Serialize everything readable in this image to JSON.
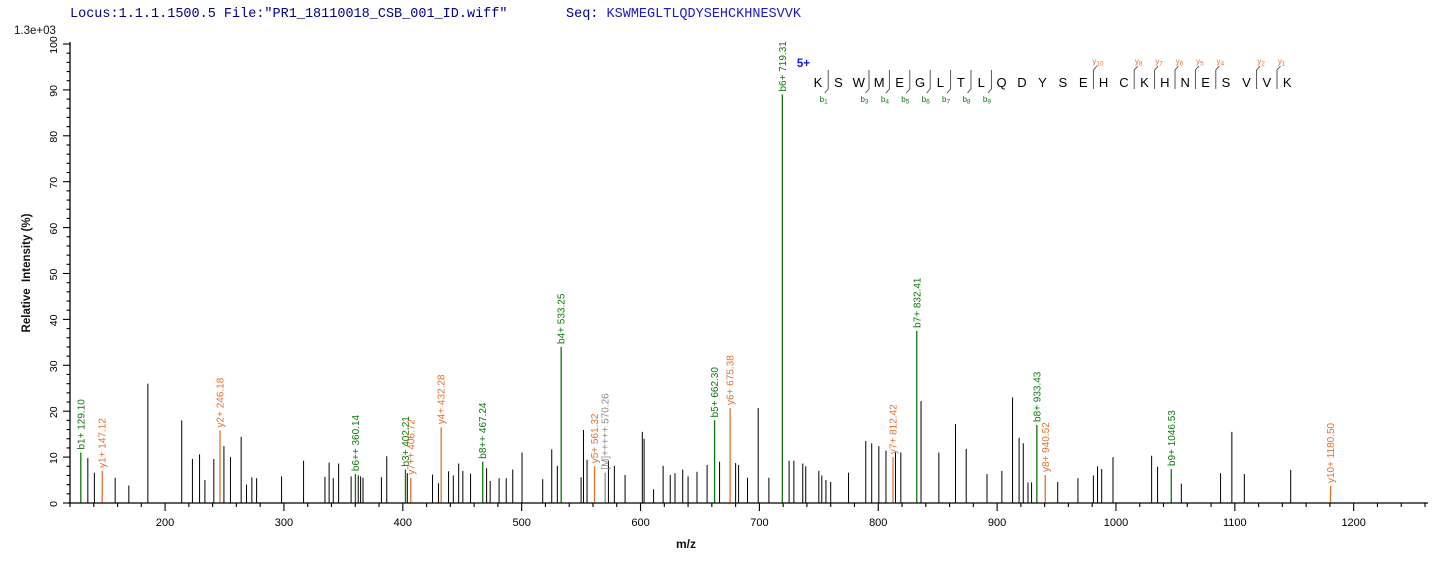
{
  "header": {
    "locus_file": "Locus:1.1.1.1500.5 File:\"PR1_18110018_CSB_001_ID.wiff\"",
    "seq_label": "Seq: ",
    "seq_value": "KSWMEGLTLQDYSEHCKHNESVVK"
  },
  "colors": {
    "b_ion": "#0b770b",
    "y_ion": "#e2712e",
    "precursor": "#8c8c8c",
    "peak": "#000000",
    "axis": "#000000",
    "header_text": "#00008b",
    "sequence_value_text": "#1a1acd",
    "charge_label_text": "#1515e6",
    "divider": "#444444"
  },
  "chart_data": {
    "type": "bar",
    "subtype": "ms2-fragment-stick-spectrum",
    "title": "",
    "xlabel": "m/z",
    "ylabel": "Relative  Intensity (%)",
    "y_scale_max_label": "1.3e+03",
    "xlim": [
      120,
      1260
    ],
    "ylim": [
      0,
      100
    ],
    "x_major_ticks": [
      200,
      300,
      400,
      500,
      600,
      700,
      800,
      900,
      1000,
      1100,
      1200
    ],
    "x_minor_step": 20,
    "y_major_ticks": [
      0,
      10,
      20,
      30,
      40,
      50,
      60,
      70,
      80,
      90,
      100
    ],
    "y_minor_step": 2,
    "grid": "off",
    "sequence_display": {
      "charge_label": "5+",
      "residues": "KSWMEGLTLQDYSEHCKHNESVVK",
      "b_markers": [
        {
          "ion": "b1",
          "boundary": 1
        },
        {
          "ion": "b3",
          "boundary": 3
        },
        {
          "ion": "b4",
          "boundary": 4
        },
        {
          "ion": "b5",
          "boundary": 5
        },
        {
          "ion": "b6",
          "boundary": 6
        },
        {
          "ion": "b7",
          "boundary": 7
        },
        {
          "ion": "b8",
          "boundary": 8
        },
        {
          "ion": "b9",
          "boundary": 9
        }
      ],
      "y_markers": [
        {
          "ion": "y10",
          "boundary": 14
        },
        {
          "ion": "y8",
          "boundary": 16
        },
        {
          "ion": "y7",
          "boundary": 17
        },
        {
          "ion": "y6",
          "boundary": 18
        },
        {
          "ion": "y5",
          "boundary": 19
        },
        {
          "ion": "y4",
          "boundary": 20
        },
        {
          "ion": "y2",
          "boundary": 22
        },
        {
          "ion": "y1",
          "boundary": 23
        }
      ]
    },
    "peaks": [
      {
        "mz": 129.1,
        "i": 11.0,
        "ion": "b",
        "label": "b1+ 129.10"
      },
      {
        "mz": 135.0,
        "i": 9.8
      },
      {
        "mz": 140.5,
        "i": 6.6
      },
      {
        "mz": 147.12,
        "i": 7.0,
        "ion": "y",
        "label": "y1+ 147.12"
      },
      {
        "mz": 158.0,
        "i": 5.5
      },
      {
        "mz": 169.5,
        "i": 3.8
      },
      {
        "mz": 185.5,
        "i": 26.0
      },
      {
        "mz": 214.0,
        "i": 18.0
      },
      {
        "mz": 223.0,
        "i": 9.6
      },
      {
        "mz": 229.0,
        "i": 10.6
      },
      {
        "mz": 233.5,
        "i": 5.0
      },
      {
        "mz": 241.0,
        "i": 9.6
      },
      {
        "mz": 246.18,
        "i": 15.8,
        "ion": "y",
        "label": "y2+ 246.18"
      },
      {
        "mz": 249.5,
        "i": 12.4
      },
      {
        "mz": 255.0,
        "i": 10.0
      },
      {
        "mz": 264.0,
        "i": 14.4
      },
      {
        "mz": 268.5,
        "i": 4.0
      },
      {
        "mz": 273.0,
        "i": 5.6
      },
      {
        "mz": 277.0,
        "i": 5.4
      },
      {
        "mz": 298.0,
        "i": 5.8
      },
      {
        "mz": 316.5,
        "i": 9.2
      },
      {
        "mz": 334.5,
        "i": 5.7
      },
      {
        "mz": 338.0,
        "i": 8.8
      },
      {
        "mz": 341.5,
        "i": 5.4
      },
      {
        "mz": 346.0,
        "i": 8.6
      },
      {
        "mz": 356.5,
        "i": 5.8
      },
      {
        "mz": 360.14,
        "i": 6.3,
        "ion": "b",
        "label": "b6++ 360.14"
      },
      {
        "mz": 362.5,
        "i": 6.0
      },
      {
        "mz": 364.5,
        "i": 5.8
      },
      {
        "mz": 366.5,
        "i": 5.5
      },
      {
        "mz": 382.0,
        "i": 5.6
      },
      {
        "mz": 386.5,
        "i": 10.2
      },
      {
        "mz": 402.21,
        "i": 7.3,
        "ion": "b",
        "label": "b3+ 402.21"
      },
      {
        "mz": 403.8,
        "i": 6.5
      },
      {
        "mz": 406.72,
        "i": 5.5,
        "ion": "y",
        "label": "y7++ 406.72"
      },
      {
        "mz": 425.0,
        "i": 6.2
      },
      {
        "mz": 430.0,
        "i": 4.3
      },
      {
        "mz": 432.28,
        "i": 16.5,
        "ion": "y",
        "label": "y4+ 432.28"
      },
      {
        "mz": 438.5,
        "i": 6.9
      },
      {
        "mz": 442.5,
        "i": 6.0
      },
      {
        "mz": 447.0,
        "i": 8.6
      },
      {
        "mz": 450.5,
        "i": 7.0
      },
      {
        "mz": 457.0,
        "i": 6.4
      },
      {
        "mz": 467.24,
        "i": 9.0,
        "ion": "b",
        "label": "b8++ 467.24"
      },
      {
        "mz": 470.5,
        "i": 7.6
      },
      {
        "mz": 473.5,
        "i": 4.8
      },
      {
        "mz": 481.0,
        "i": 5.4
      },
      {
        "mz": 487.0,
        "i": 5.4
      },
      {
        "mz": 492.5,
        "i": 7.3
      },
      {
        "mz": 500.3,
        "i": 11.0
      },
      {
        "mz": 517.7,
        "i": 5.2
      },
      {
        "mz": 525.3,
        "i": 11.7
      },
      {
        "mz": 530.0,
        "i": 8.1
      },
      {
        "mz": 533.25,
        "i": 34.0,
        "ion": "b",
        "label": "b4+ 533.25"
      },
      {
        "mz": 550.0,
        "i": 5.6
      },
      {
        "mz": 552.0,
        "i": 15.9
      },
      {
        "mz": 555.0,
        "i": 9.4
      },
      {
        "mz": 561.32,
        "i": 8.0,
        "ion": "y",
        "label": "y5+ 561.32"
      },
      {
        "mz": 570.26,
        "i": 6.6,
        "ion": "M",
        "label": "[M]+++++ 570.26"
      },
      {
        "mz": 573.0,
        "i": 9.2
      },
      {
        "mz": 578.0,
        "i": 8.1
      },
      {
        "mz": 587.0,
        "i": 6.1
      },
      {
        "mz": 601.5,
        "i": 15.5
      },
      {
        "mz": 603.0,
        "i": 14.0
      },
      {
        "mz": 611.0,
        "i": 3.0
      },
      {
        "mz": 619.0,
        "i": 8.1
      },
      {
        "mz": 625.0,
        "i": 6.1
      },
      {
        "mz": 629.0,
        "i": 6.5
      },
      {
        "mz": 635.5,
        "i": 7.3
      },
      {
        "mz": 640.0,
        "i": 5.8
      },
      {
        "mz": 647.5,
        "i": 6.8
      },
      {
        "mz": 656.0,
        "i": 8.3
      },
      {
        "mz": 662.3,
        "i": 18.0,
        "ion": "b",
        "label": "b5+ 662.30"
      },
      {
        "mz": 666.5,
        "i": 9.0
      },
      {
        "mz": 675.38,
        "i": 20.7,
        "ion": "y",
        "label": "y6+ 675.38"
      },
      {
        "mz": 680.0,
        "i": 8.7
      },
      {
        "mz": 682.5,
        "i": 8.3
      },
      {
        "mz": 690.0,
        "i": 5.5
      },
      {
        "mz": 699.0,
        "i": 20.7
      },
      {
        "mz": 708.0,
        "i": 5.5
      },
      {
        "mz": 719.31,
        "i": 89.0,
        "ion": "b",
        "label": "b6+ 719.31"
      },
      {
        "mz": 725.0,
        "i": 9.2
      },
      {
        "mz": 729.0,
        "i": 9.2
      },
      {
        "mz": 736.5,
        "i": 8.6
      },
      {
        "mz": 739.0,
        "i": 8.0
      },
      {
        "mz": 750.0,
        "i": 7.0
      },
      {
        "mz": 752.5,
        "i": 6.0
      },
      {
        "mz": 756.0,
        "i": 5.0
      },
      {
        "mz": 760.0,
        "i": 4.6
      },
      {
        "mz": 775.0,
        "i": 6.6
      },
      {
        "mz": 789.5,
        "i": 13.5
      },
      {
        "mz": 794.5,
        "i": 13.0
      },
      {
        "mz": 800.5,
        "i": 12.4
      },
      {
        "mz": 806.5,
        "i": 11.4
      },
      {
        "mz": 812.42,
        "i": 10.0,
        "ion": "y",
        "label": "y7+ 812.42"
      },
      {
        "mz": 814.5,
        "i": 11.0
      },
      {
        "mz": 819.0,
        "i": 11.0
      },
      {
        "mz": 832.41,
        "i": 37.5,
        "ion": "b",
        "label": "b7+ 832.41"
      },
      {
        "mz": 836.0,
        "i": 22.2
      },
      {
        "mz": 851.0,
        "i": 11.0
      },
      {
        "mz": 865.0,
        "i": 17.2
      },
      {
        "mz": 874.0,
        "i": 11.8
      },
      {
        "mz": 891.5,
        "i": 6.3
      },
      {
        "mz": 904.0,
        "i": 7.0
      },
      {
        "mz": 913.0,
        "i": 23.0
      },
      {
        "mz": 918.5,
        "i": 14.2
      },
      {
        "mz": 922.0,
        "i": 13.0
      },
      {
        "mz": 926.0,
        "i": 4.5
      },
      {
        "mz": 929.0,
        "i": 4.5
      },
      {
        "mz": 933.43,
        "i": 17.0,
        "ion": "b",
        "label": "b8+ 933.43"
      },
      {
        "mz": 940.52,
        "i": 6.1,
        "ion": "y",
        "label": "y8+ 940.52"
      },
      {
        "mz": 951.0,
        "i": 4.6
      },
      {
        "mz": 968.0,
        "i": 5.4
      },
      {
        "mz": 981.0,
        "i": 6.0
      },
      {
        "mz": 984.5,
        "i": 8.0
      },
      {
        "mz": 988.0,
        "i": 7.4
      },
      {
        "mz": 997.5,
        "i": 10.0
      },
      {
        "mz": 1030.0,
        "i": 10.3
      },
      {
        "mz": 1035.0,
        "i": 7.9
      },
      {
        "mz": 1046.53,
        "i": 7.4,
        "ion": "b",
        "label": "b9+ 1046.53"
      },
      {
        "mz": 1055.0,
        "i": 4.2
      },
      {
        "mz": 1088.0,
        "i": 6.5
      },
      {
        "mz": 1097.5,
        "i": 15.5
      },
      {
        "mz": 1108.0,
        "i": 6.3
      },
      {
        "mz": 1147.0,
        "i": 7.2
      },
      {
        "mz": 1180.5,
        "i": 3.7,
        "ion": "y",
        "label": "y10+ 1180.50"
      }
    ]
  }
}
